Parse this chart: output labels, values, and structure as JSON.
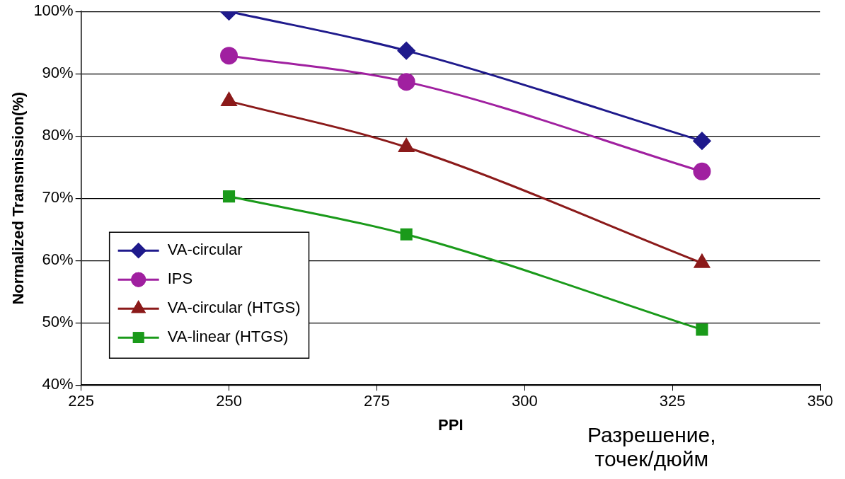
{
  "chart_data": {
    "type": "line",
    "xlabel": "PPI",
    "ylabel": "Normalized Transmission(%)",
    "xlim": [
      225,
      350
    ],
    "xticks": [
      225,
      250,
      275,
      300,
      325,
      350
    ],
    "ylim": [
      40,
      100
    ],
    "yticks": [
      {
        "value": 40,
        "label": "40%"
      },
      {
        "value": 50,
        "label": "50%"
      },
      {
        "value": 60,
        "label": "60%"
      },
      {
        "value": 70,
        "label": "70%"
      },
      {
        "value": 80,
        "label": "80%"
      },
      {
        "value": 90,
        "label": "90%"
      },
      {
        "value": 100,
        "label": "100%"
      }
    ],
    "x": [
      250,
      280,
      330
    ],
    "series": [
      {
        "name": "VA-circular",
        "color": "#1f1a8c",
        "marker": "diamond",
        "values": [
          100,
          93.7,
          79.2
        ]
      },
      {
        "name": "IPS",
        "color": "#a020a0",
        "marker": "circle",
        "values": [
          92.9,
          88.7,
          74.3
        ]
      },
      {
        "name": "VA-circular (HTGS)",
        "color": "#8b1a1a",
        "marker": "triangle",
        "values": [
          85.6,
          78.2,
          59.6
        ]
      },
      {
        "name": "VA-linear (HTGS)",
        "color": "#1a9a1a",
        "marker": "square",
        "values": [
          70.3,
          64.2,
          48.9
        ]
      }
    ],
    "grid": "y",
    "legend": "bottom left",
    "line_style": "solid",
    "annotations": [
      "Разрешение,\nточек/дюйм"
    ]
  }
}
